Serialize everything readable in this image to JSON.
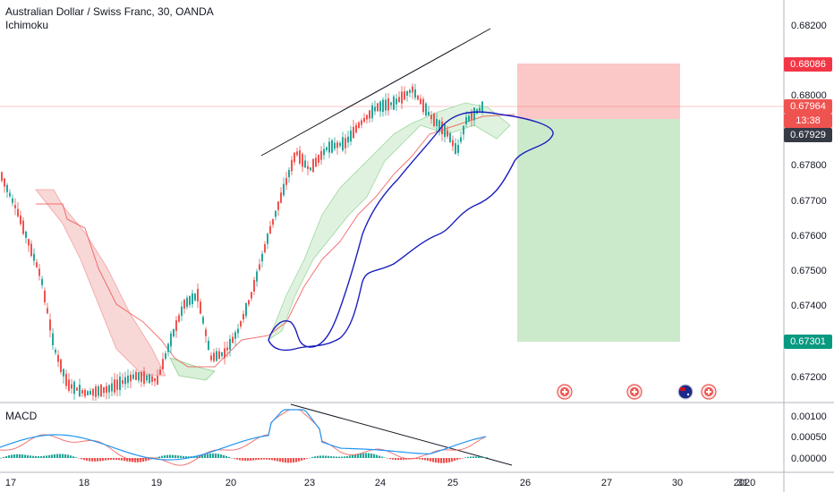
{
  "header": {
    "title": "Australian Dollar / Swiss Franc, 30, OANDA",
    "indicator": "Ichimoku"
  },
  "macd_label": "MACD",
  "price_axis": {
    "ticks": [
      "0.68200",
      "0.68000",
      "0.67800",
      "0.67700",
      "0.67600",
      "0.67500",
      "0.67400",
      "0.67200"
    ],
    "tags": {
      "stop": {
        "label": "0.68086",
        "color": "#f23645"
      },
      "current": {
        "label": "0.67964",
        "color": "#ef5350"
      },
      "countdown": {
        "label": "13:38",
        "color": "#ef5350"
      },
      "entry": {
        "label": "0.67929",
        "color": "#363a45"
      },
      "target": {
        "label": "0.67301",
        "color": "#089981"
      }
    }
  },
  "macd_axis": {
    "ticks": [
      "0.00100",
      "0.00050",
      "0.00000"
    ]
  },
  "time_axis": {
    "ticks": [
      "17",
      "18",
      "19",
      "20",
      "23",
      "24",
      "25",
      "26",
      "27",
      "30",
      "31",
      "2020"
    ]
  },
  "events": [
    {
      "icon": "economic-event-icon"
    },
    {
      "icon": "economic-event-icon"
    },
    {
      "icon": "australia-flag-icon"
    },
    {
      "icon": "economic-event-icon"
    }
  ],
  "colors": {
    "up": "#26a69a",
    "down": "#ef5350",
    "projection": "#1a1fbd",
    "cloud_bull": "#4caf50",
    "cloud_bear": "#ef5350"
  }
}
